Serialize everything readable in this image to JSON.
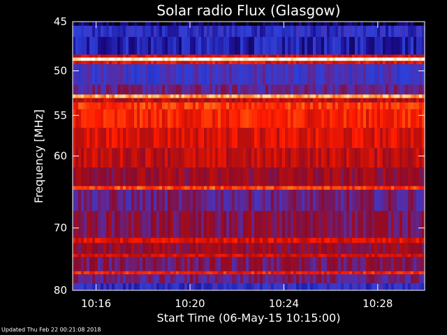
{
  "chart_data": {
    "type": "heatmap",
    "title": "Solar radio Flux (Glasgow)",
    "xlabel": "Start Time (06-May-15 10:15:00)",
    "ylabel": "Frequency [MHz]",
    "x_range": [
      "10:15:00",
      "10:30:00"
    ],
    "x_ticks": [
      "10:16",
      "10:20",
      "10:24",
      "10:28"
    ],
    "ylim": [
      45,
      80
    ],
    "y_ticks": [
      "45",
      "50",
      "55",
      "60",
      "70",
      "80"
    ],
    "y_scale": "log",
    "colormap": [
      "#000000",
      "#1a0b8c",
      "#2e3fd8",
      "#5a2aa0",
      "#8c0a2a",
      "#c0100a",
      "#ff1a00",
      "#ff6a10",
      "#ffd070",
      "#ffffff"
    ],
    "bands": [
      {
        "f0": 45.0,
        "f1": 45.4,
        "level": 0.05
      },
      {
        "f0": 45.4,
        "f1": 46.5,
        "level": 0.2
      },
      {
        "f0": 46.5,
        "f1": 48.3,
        "level": 0.16
      },
      {
        "f0": 48.3,
        "f1": 48.6,
        "level": 0.6
      },
      {
        "f0": 48.6,
        "f1": 48.95,
        "level": 0.97
      },
      {
        "f0": 48.95,
        "f1": 49.3,
        "level": 0.62
      },
      {
        "f0": 49.3,
        "f1": 51.5,
        "level": 0.28
      },
      {
        "f0": 51.5,
        "f1": 52.6,
        "level": 0.35
      },
      {
        "f0": 52.6,
        "f1": 53.0,
        "level": 0.85
      },
      {
        "f0": 53.0,
        "f1": 53.5,
        "level": 0.55
      },
      {
        "f0": 53.5,
        "f1": 54.3,
        "level": 0.7
      },
      {
        "f0": 54.3,
        "f1": 56.5,
        "level": 0.66
      },
      {
        "f0": 56.5,
        "f1": 59.0,
        "level": 0.6
      },
      {
        "f0": 59.0,
        "f1": 61.5,
        "level": 0.55
      },
      {
        "f0": 61.5,
        "f1": 64.0,
        "level": 0.47
      },
      {
        "f0": 64.0,
        "f1": 64.5,
        "level": 0.72
      },
      {
        "f0": 64.5,
        "f1": 67.5,
        "level": 0.36
      },
      {
        "f0": 67.5,
        "f1": 71.5,
        "level": 0.42
      },
      {
        "f0": 71.5,
        "f1": 72.3,
        "level": 0.6
      },
      {
        "f0": 72.3,
        "f1": 74.0,
        "level": 0.45
      },
      {
        "f0": 74.0,
        "f1": 74.5,
        "level": 0.58
      },
      {
        "f0": 74.5,
        "f1": 76.8,
        "level": 0.4
      },
      {
        "f0": 76.8,
        "f1": 77.3,
        "level": 0.66
      },
      {
        "f0": 77.3,
        "f1": 78.8,
        "level": 0.36
      },
      {
        "f0": 78.8,
        "f1": 80.0,
        "level": 0.22
      }
    ]
  },
  "footer": "Updated Thu Feb 22 00:21:08 2018"
}
